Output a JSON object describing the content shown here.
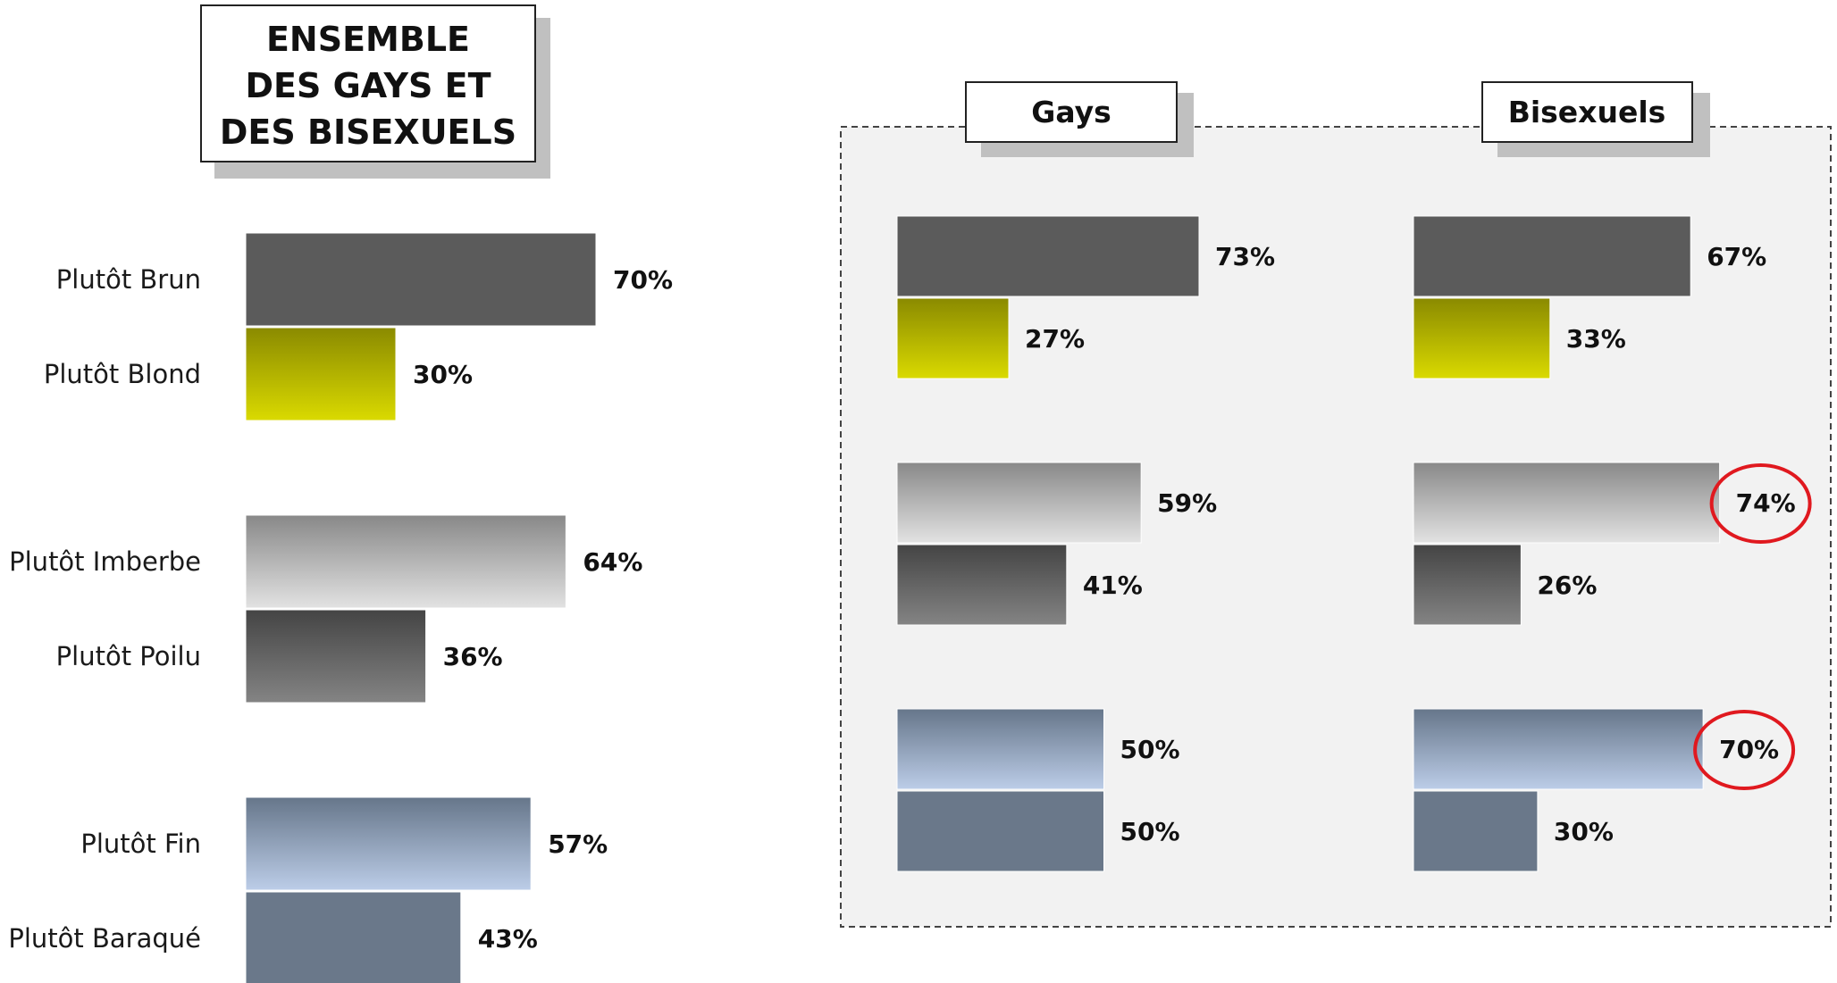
{
  "chart_data": [
    {
      "type": "bar",
      "orientation": "horizontal",
      "title": [
        "ENSEMBLE",
        "DES GAYS ET",
        "DES BISEXUELS"
      ],
      "categories": [
        "Plutôt Brun",
        "Plutôt Blond",
        "Plutôt Imberbe",
        "Plutôt Poilu",
        "Plutôt Fin",
        "Plutôt Baraqué"
      ],
      "values": [
        70,
        30,
        64,
        36,
        57,
        43
      ],
      "value_labels": [
        "70%",
        "30%",
        "64%",
        "36%",
        "57%",
        "43%"
      ],
      "unit": "%"
    },
    {
      "type": "bar",
      "orientation": "horizontal",
      "title": "Gays",
      "values": [
        73,
        27,
        59,
        41,
        50,
        50
      ],
      "value_labels": [
        "73%",
        "27%",
        "59%",
        "41%",
        "50%",
        "50%"
      ],
      "unit": "%"
    },
    {
      "type": "bar",
      "orientation": "horizontal",
      "title": "Bisexuels",
      "values": [
        67,
        33,
        74,
        26,
        70,
        30
      ],
      "value_labels": [
        "67%",
        "33%",
        "74%",
        "26%",
        "70%",
        "30%"
      ],
      "unit": "%",
      "highlighted_indices": [
        2,
        4
      ],
      "highlight_color": "#e0191f"
    }
  ],
  "colors": {
    "brun": "#5b5b5b",
    "blond_top": "#8a8a00",
    "blond_bottom": "#dada00",
    "imberbe_top": "#888888",
    "imberbe_bottom": "#e2e2e2",
    "poilu_top": "#444444",
    "poilu_bottom": "#848484",
    "fin_top": "#66768a",
    "fin_bottom": "#bccde8",
    "baraque": "#6a788a",
    "panel_bg": "#f2f2f2",
    "highlight": "#e0191f"
  }
}
